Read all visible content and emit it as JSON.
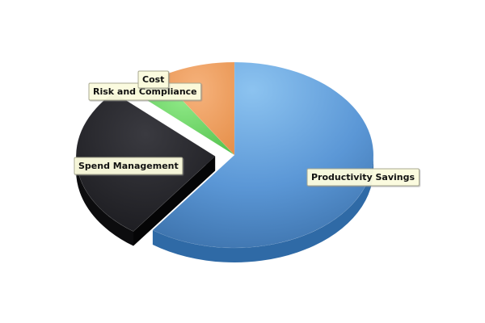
{
  "chart_data": {
    "type": "pie",
    "title": "",
    "is_3d": true,
    "legend": "none",
    "slices": [
      {
        "label": "Productivity Savings",
        "value": 60,
        "color": "#5b97d6",
        "exploded": false
      },
      {
        "label": "Spend Management",
        "value": 27,
        "color": "#2a2a2e",
        "exploded": true
      },
      {
        "label": "Risk and Compliance",
        "value": 4,
        "color": "#5fd05a",
        "exploded": false
      },
      {
        "label": "Cost",
        "value": 9,
        "color": "#ee9550",
        "exploded": false
      }
    ]
  }
}
